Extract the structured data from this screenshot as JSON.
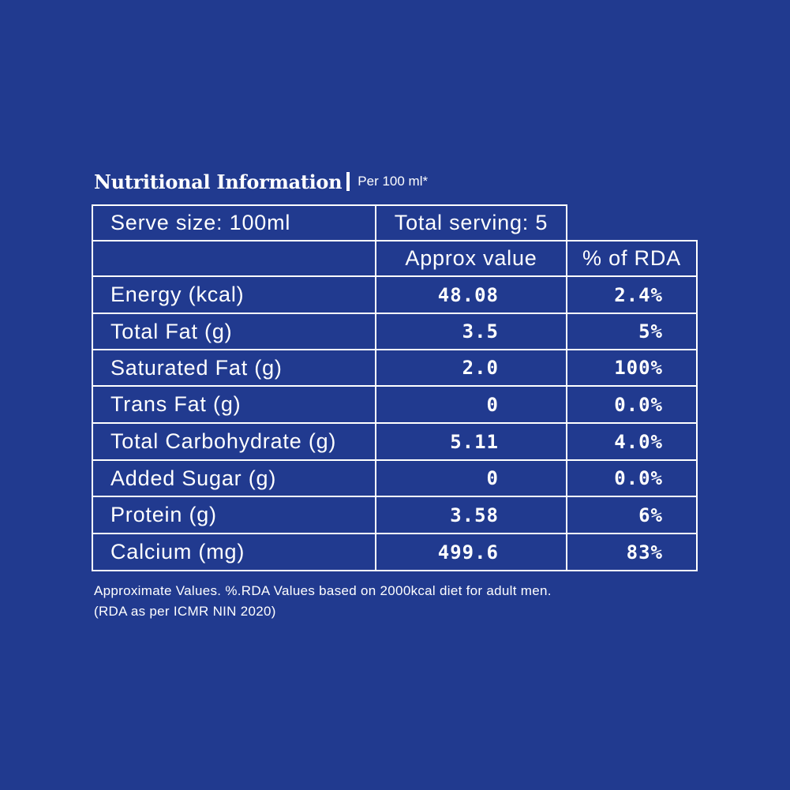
{
  "title": {
    "main": "Nutritional Information",
    "sub": "Per 100 ml*"
  },
  "header": {
    "serve_size": "Serve size: 100ml",
    "total_serving": "Total serving: 5",
    "approx_value": "Approx value",
    "rda": "% of RDA"
  },
  "rows": [
    {
      "label": "Energy (kcal)",
      "value": "48.08",
      "rda": "2.4%"
    },
    {
      "label": "Total Fat (g)",
      "value": "3.5",
      "rda": "5%"
    },
    {
      "label": "Saturated Fat (g)",
      "value": "2.0",
      "rda": "100%"
    },
    {
      "label": "Trans Fat (g)",
      "value": "0",
      "rda": "0.0%"
    },
    {
      "label": "Total Carbohydrate (g)",
      "value": "5.11",
      "rda": "4.0%"
    },
    {
      "label": "Added Sugar (g)",
      "value": "0",
      "rda": "0.0%"
    },
    {
      "label": "Protein (g)",
      "value": "3.58",
      "rda": "6%"
    },
    {
      "label": "Calcium (mg)",
      "value": "499.6",
      "rda": "83%"
    }
  ],
  "footnote": {
    "line1": "Approximate Values. %.RDA Values based on 2000kcal diet for adult men.",
    "line2": "(RDA as per ICMR NIN 2020)"
  },
  "colors": {
    "background": "#213a8f",
    "foreground": "#ffffff"
  }
}
